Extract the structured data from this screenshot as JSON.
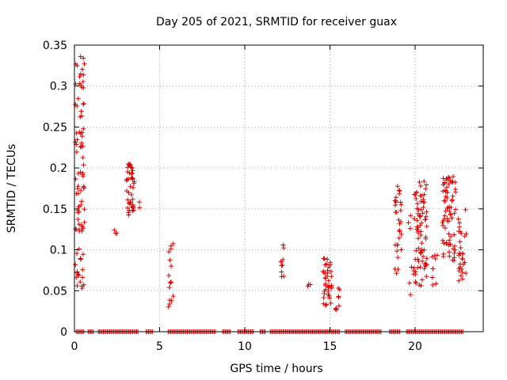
{
  "chart_data": {
    "type": "scatter",
    "title": "Day 205 of 2021, SRMTID for receiver guax",
    "xlabel": "GPS time / hours",
    "ylabel": "SRMTID / TECUs",
    "xlim": [
      0,
      24
    ],
    "ylim": [
      0,
      0.35
    ],
    "xticks": [
      0,
      5,
      10,
      15,
      20
    ],
    "yticks": [
      0,
      0.05,
      0.1,
      0.15,
      0.2,
      0.25,
      0.3,
      0.35
    ],
    "xtick_labels": [
      "0",
      "5",
      "10",
      "15",
      "20"
    ],
    "ytick_labels": [
      "0",
      "0.05",
      "0.1",
      "0.15",
      "0.2",
      "0.25",
      "0.3",
      "0.35"
    ],
    "grid": true,
    "marker": "+",
    "color": "#dd0000",
    "clusters": [
      {
        "x": [
          0.05,
          0.6
        ],
        "y": [
          0.05,
          0.34
        ],
        "n": 90
      },
      {
        "x": [
          2.3,
          2.5
        ],
        "y": [
          0.12,
          0.13
        ],
        "n": 3
      },
      {
        "x": [
          3.05,
          3.55
        ],
        "y": [
          0.14,
          0.21
        ],
        "n": 45
      },
      {
        "x": [
          3.7,
          3.85
        ],
        "y": [
          0.15,
          0.16
        ],
        "n": 2
      },
      {
        "x": [
          5.5,
          5.8
        ],
        "y": [
          0.03,
          0.11
        ],
        "n": 16
      },
      {
        "x": [
          12.1,
          12.35
        ],
        "y": [
          0.065,
          0.108
        ],
        "n": 10
      },
      {
        "x": [
          13.7,
          13.85
        ],
        "y": [
          0.055,
          0.06
        ],
        "n": 3
      },
      {
        "x": [
          14.6,
          15.1
        ],
        "y": [
          0.03,
          0.09
        ],
        "n": 40
      },
      {
        "x": [
          15.3,
          15.6
        ],
        "y": [
          0.025,
          0.055
        ],
        "n": 8
      },
      {
        "x": [
          18.8,
          19.2
        ],
        "y": [
          0.07,
          0.18
        ],
        "n": 30
      },
      {
        "x": [
          19.5,
          19.8
        ],
        "y": [
          0.03,
          0.155
        ],
        "n": 6
      },
      {
        "x": [
          19.9,
          20.7
        ],
        "y": [
          0.055,
          0.185
        ],
        "n": 80
      },
      {
        "x": [
          21.0,
          21.3
        ],
        "y": [
          0.055,
          0.095
        ],
        "n": 8
      },
      {
        "x": [
          21.6,
          22.4
        ],
        "y": [
          0.085,
          0.19
        ],
        "n": 70
      },
      {
        "x": [
          22.5,
          23.0
        ],
        "y": [
          0.06,
          0.155
        ],
        "n": 30
      }
    ],
    "zero_segments": [
      [
        0.1,
        0.6
      ],
      [
        0.8,
        1.1
      ],
      [
        1.4,
        3.8
      ],
      [
        4.2,
        4.6
      ],
      [
        5.5,
        8.3
      ],
      [
        8.7,
        9.2
      ],
      [
        9.6,
        10.5
      ],
      [
        10.9,
        11.2
      ],
      [
        11.5,
        15.6
      ],
      [
        15.9,
        18.0
      ],
      [
        18.5,
        19.1
      ],
      [
        19.5,
        22.8
      ]
    ]
  }
}
